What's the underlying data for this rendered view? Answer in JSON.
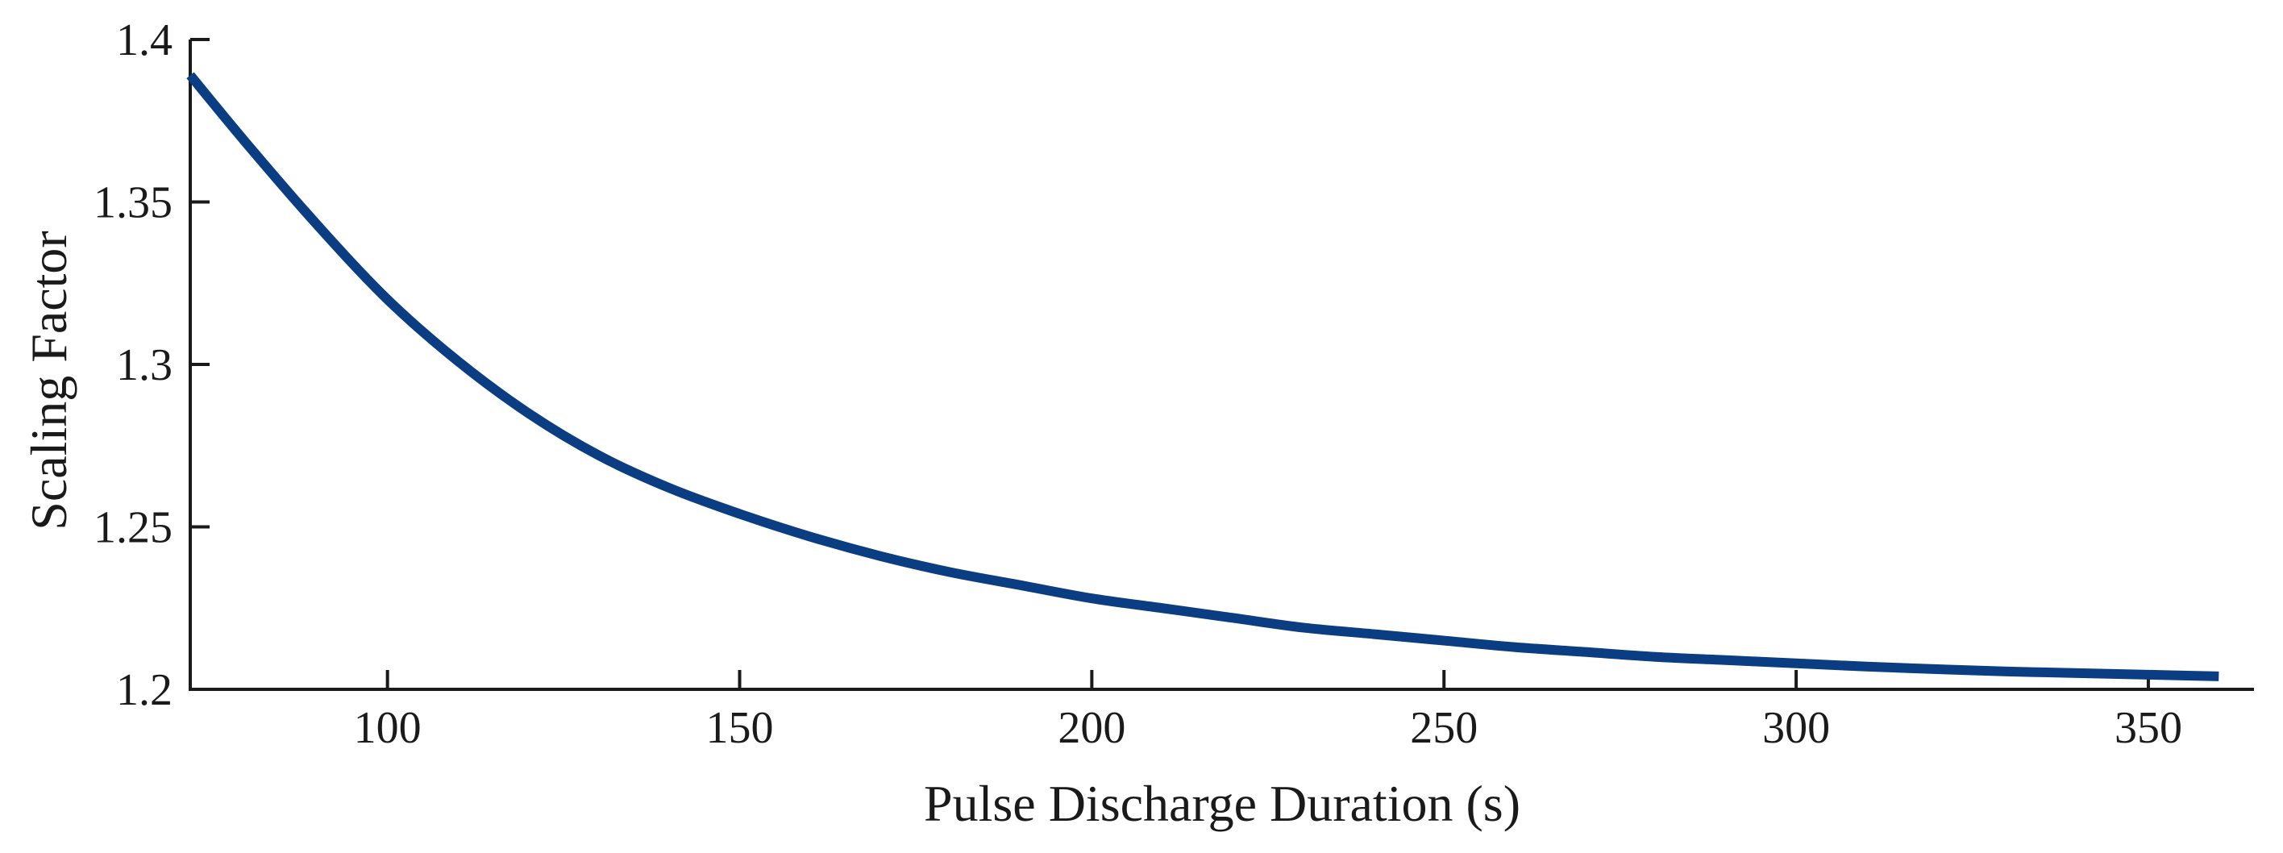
{
  "chart_data": {
    "type": "line",
    "title": "",
    "xlabel": "Pulse Discharge Duration (s)",
    "ylabel": "Scaling Factor",
    "xlim": [
      72,
      365
    ],
    "ylim": [
      1.2,
      1.4
    ],
    "xticks": [
      100,
      150,
      200,
      250,
      300,
      350
    ],
    "xtick_labels": [
      "100",
      "150",
      "200",
      "250",
      "300",
      "350"
    ],
    "yticks": [
      1.2,
      1.25,
      1.3,
      1.35,
      1.4
    ],
    "ytick_labels": [
      "1.2",
      "1.25",
      "1.3",
      "1.35",
      "1.4"
    ],
    "grid": false,
    "series": [
      {
        "name": "Scaling Factor",
        "color": "#0b3d82",
        "x": [
          72,
          80,
          90,
          100,
          110,
          120,
          130,
          140,
          150,
          160,
          170,
          180,
          190,
          200,
          210,
          220,
          230,
          240,
          250,
          260,
          270,
          280,
          290,
          300,
          310,
          320,
          330,
          340,
          350,
          360
        ],
        "y": [
          1.389,
          1.368,
          1.343,
          1.32,
          1.301,
          1.285,
          1.272,
          1.262,
          1.254,
          1.247,
          1.241,
          1.236,
          1.232,
          1.228,
          1.225,
          1.222,
          1.219,
          1.217,
          1.215,
          1.213,
          1.2115,
          1.21,
          1.209,
          1.208,
          1.207,
          1.2062,
          1.2055,
          1.205,
          1.2045,
          1.204
        ]
      }
    ]
  }
}
